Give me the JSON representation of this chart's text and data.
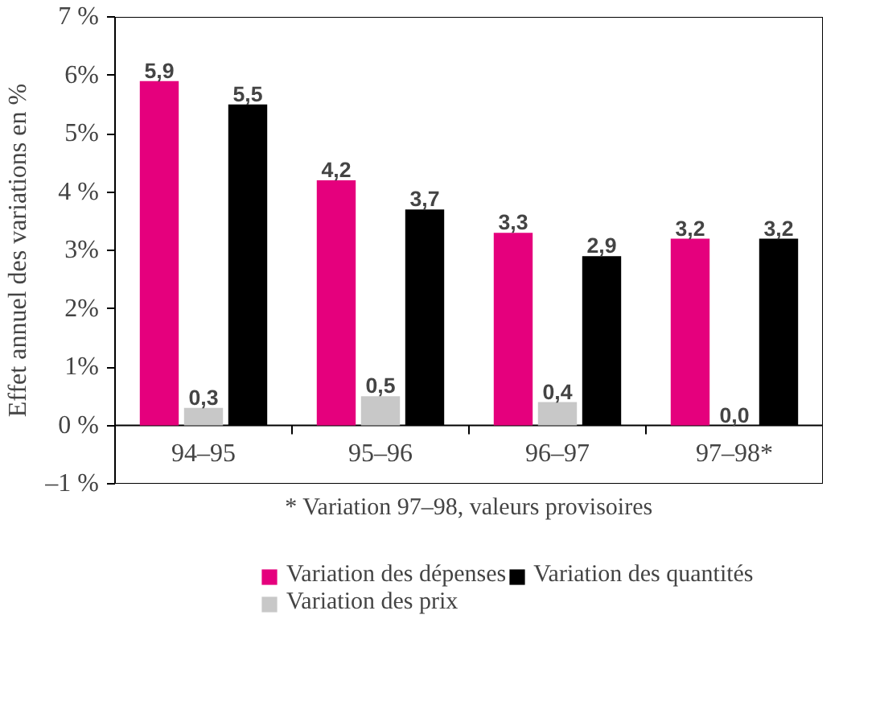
{
  "chart_data": {
    "type": "bar",
    "ylabel": "Effet annuel des variations en %",
    "categories": [
      "94–95",
      "95–96",
      "96–97",
      "97–98*"
    ],
    "series": [
      {
        "name": "Variation des dépenses",
        "color": "#e5007d",
        "values": [
          5.9,
          4.2,
          3.3,
          3.2
        ],
        "value_labels": [
          "5,9",
          "4,2",
          "3,3",
          "3,2"
        ]
      },
      {
        "name": "Variation des prix",
        "color": "#c8c8c8",
        "values": [
          0.3,
          0.5,
          0.4,
          0.0
        ],
        "value_labels": [
          "0,3",
          "0,5",
          "0,4",
          "0,0"
        ]
      },
      {
        "name": "Variation des quantités",
        "color": "#000000",
        "values": [
          5.5,
          3.7,
          2.9,
          3.2
        ],
        "value_labels": [
          "5,5",
          "3,7",
          "2,9",
          "3,2"
        ]
      }
    ],
    "ylim": [
      -1,
      7
    ],
    "yticks": [
      {
        "value": -1,
        "label": "–1 %"
      },
      {
        "value": 0,
        "label": "0 %"
      },
      {
        "value": 1,
        "label": "1%"
      },
      {
        "value": 2,
        "label": "2%"
      },
      {
        "value": 3,
        "label": "3%"
      },
      {
        "value": 4,
        "label": "4 %"
      },
      {
        "value": 5,
        "label": "5%"
      },
      {
        "value": 6,
        "label": "6%"
      },
      {
        "value": 7,
        "label": "7 %"
      }
    ],
    "grid": false,
    "legend": "bottom",
    "annotations": [
      "* Variation 97–98, valeurs provisoires"
    ]
  }
}
